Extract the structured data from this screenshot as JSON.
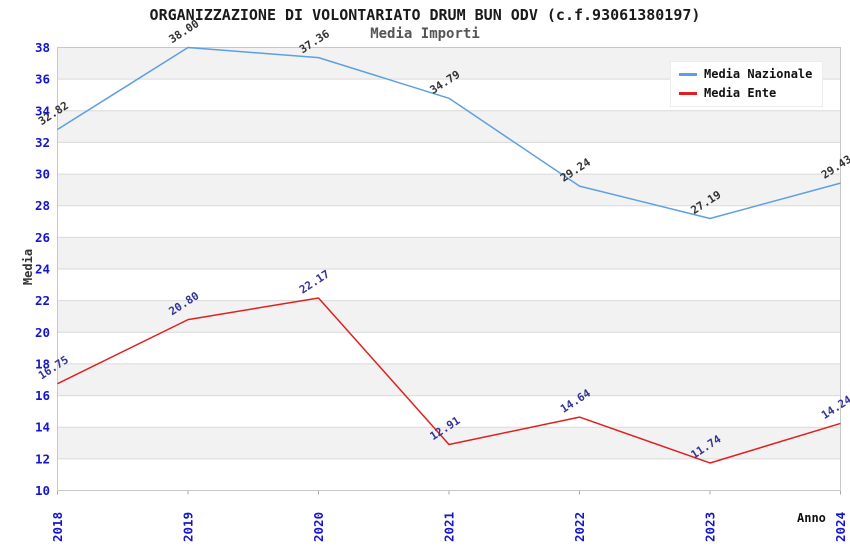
{
  "chart_data": {
    "type": "line",
    "title": "ORGANIZZAZIONE DI VOLONTARIATO DRUM BUN ODV (c.f.93061380197)",
    "subtitle": "Media Importi",
    "xlabel": "Anno",
    "ylabel": "Media",
    "categories": [
      "2018",
      "2019",
      "2020",
      "2021",
      "2022",
      "2023",
      "2024"
    ],
    "series": [
      {
        "name": "Media Nazionale",
        "color": "#5f9fe0",
        "label_color": "#333333",
        "values": [
          32.82,
          38.0,
          37.36,
          34.79,
          29.24,
          27.19,
          29.43
        ]
      },
      {
        "name": "Media Ente",
        "color": "#e02020",
        "label_color": "#333399",
        "values": [
          16.75,
          20.8,
          22.17,
          12.91,
          14.64,
          11.74,
          14.24
        ]
      }
    ],
    "ylim": [
      10,
      38
    ],
    "ytick_step": 2,
    "value_label_decimals": 2,
    "grid": true,
    "legend_position": "top-right",
    "styles": {
      "tick_label_color": "#1515cc",
      "band_gray": "#f2f2f2",
      "band_white": "#ffffff",
      "gridline_color": "#dadada",
      "plot_border_color": "#c8c8c8",
      "tick_mark_color": "#aaaaaa"
    }
  }
}
